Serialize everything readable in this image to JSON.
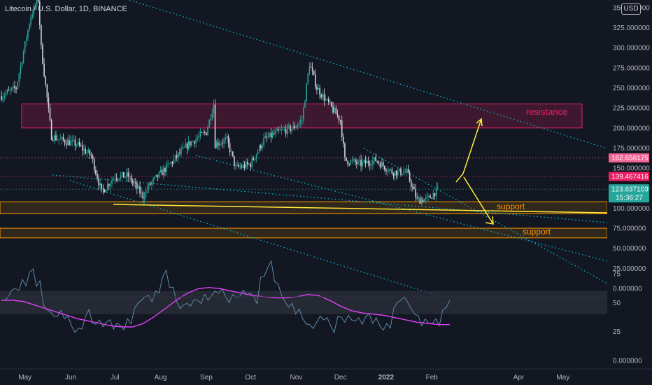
{
  "header": {
    "ticker": "Litecoin / U.S. Dollar, 1D, BINANCE",
    "currency": "USD"
  },
  "colors": {
    "background": "#131722",
    "up": "#26a69a",
    "down": "#d1d4dc",
    "resistance": "#e91e63",
    "support": "#ff9800",
    "channel": "#00bcd4",
    "trendline": "#ffeb3b",
    "rsi": "#5d8aa8",
    "rsi_ma": "#e040fb"
  },
  "chart_data": [
    {
      "type": "candlestick",
      "title": "Litecoin / U.S. Dollar, 1D, BINANCE",
      "x_tick_labels": [
        "May",
        "Jun",
        "Jul",
        "Aug",
        "Sep",
        "Oct",
        "Nov",
        "Dec",
        "2022",
        "Feb",
        "Apr",
        "May"
      ],
      "y_tick_labels": [
        "350.000000",
        "325.000000",
        "300.000000",
        "275.000000",
        "250.000000",
        "225.000000",
        "200.000000",
        "175.000000",
        "150.000000",
        "125.000000",
        "100.000000",
        "75.000000",
        "50.000000",
        "25.000000",
        "0.000000"
      ],
      "ylim": [
        0,
        360
      ],
      "series_close_approx": [
        [
          "2021-04-15",
          240
        ],
        [
          "2021-04-25",
          250
        ],
        [
          "2021-05-05",
          340
        ],
        [
          "2021-05-10",
          360
        ],
        [
          "2021-05-12",
          300
        ],
        [
          "2021-05-19",
          190
        ],
        [
          "2021-05-25",
          185
        ],
        [
          "2021-06-05",
          180
        ],
        [
          "2021-06-15",
          165
        ],
        [
          "2021-06-22",
          120
        ],
        [
          "2021-07-01",
          140
        ],
        [
          "2021-07-10",
          140
        ],
        [
          "2021-07-20",
          115
        ],
        [
          "2021-07-25",
          130
        ],
        [
          "2021-08-10",
          160
        ],
        [
          "2021-08-20",
          180
        ],
        [
          "2021-09-01",
          195
        ],
        [
          "2021-09-06",
          230
        ],
        [
          "2021-09-07",
          180
        ],
        [
          "2021-09-15",
          185
        ],
        [
          "2021-09-21",
          150
        ],
        [
          "2021-10-01",
          155
        ],
        [
          "2021-10-10",
          185
        ],
        [
          "2021-10-20",
          195
        ],
        [
          "2021-10-30",
          200
        ],
        [
          "2021-11-05",
          210
        ],
        [
          "2021-11-10",
          280
        ],
        [
          "2021-11-15",
          250
        ],
        [
          "2021-11-25",
          225
        ],
        [
          "2021-12-01",
          210
        ],
        [
          "2021-12-04",
          160
        ],
        [
          "2021-12-15",
          155
        ],
        [
          "2021-12-25",
          160
        ],
        [
          "2022-01-05",
          145
        ],
        [
          "2022-01-15",
          145
        ],
        [
          "2022-01-22",
          110
        ],
        [
          "2022-01-30",
          112
        ],
        [
          "2022-02-03",
          120
        ],
        [
          "2022-02-06",
          124
        ]
      ],
      "price_tags": [
        {
          "value": 162.656175,
          "label": "162.656175",
          "color": "#f06292"
        },
        {
          "value": 139.467416,
          "label": "139.467416",
          "color": "#e91e63"
        },
        {
          "value": 123.637103,
          "label": "123.637103",
          "sublabel": "15:36:27",
          "color": "#26a69a"
        }
      ],
      "zones": [
        {
          "label": "resistance",
          "from": 200,
          "to": 230
        },
        {
          "label": "support",
          "from": 93,
          "to": 108
        },
        {
          "label": "support",
          "from": 63,
          "to": 75
        }
      ],
      "annotations": [
        "resistance",
        "support",
        "support"
      ]
    },
    {
      "type": "line",
      "title": "RSI",
      "y_tick_labels": [
        "75",
        "50",
        "25",
        "0.000000"
      ],
      "ylim": [
        0,
        100
      ],
      "band": [
        40,
        60
      ],
      "series": [
        {
          "values": [
            52,
            55,
            62,
            70,
            76,
            64,
            48,
            42,
            38,
            36,
            30,
            28,
            38,
            32,
            35,
            33,
            27,
            30,
            36,
            45,
            52,
            56,
            60,
            72,
            63,
            51,
            48,
            47,
            52,
            57,
            56,
            58,
            55,
            57,
            55,
            57,
            55,
            72,
            80,
            68,
            56,
            46,
            40,
            36,
            31,
            33,
            35,
            30,
            38,
            33,
            35,
            37,
            38,
            32,
            30,
            32,
            45,
            52,
            50,
            40,
            30,
            32,
            36,
            44,
            52
          ]
        },
        {
          "values": [
            52,
            52,
            51,
            48,
            45,
            42,
            39,
            36,
            34,
            32,
            30,
            29,
            29,
            32,
            38,
            45,
            52,
            58,
            62,
            63,
            62,
            60,
            58,
            56,
            55,
            54,
            54,
            55,
            57,
            56,
            52,
            47,
            43,
            41,
            40,
            39,
            37,
            35,
            33,
            32,
            31,
            31
          ]
        }
      ]
    }
  ]
}
